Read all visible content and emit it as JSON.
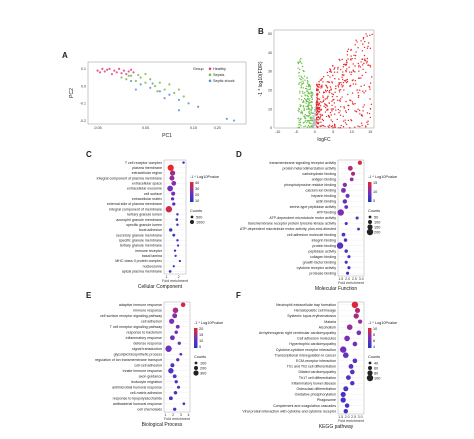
{
  "colors": {
    "healthy": "#e8407a",
    "sepsis": "#7ab648",
    "septic_shock": "#5b8fd6",
    "up": "#e8262b",
    "down": "#6cc04a",
    "ns": "#b5b5b5",
    "grad_high": "#e8262b",
    "grad_mid": "#7a2fb8",
    "grad_low": "#2235c9",
    "grid": "#e6e6e6"
  },
  "panels": {
    "A": "A",
    "B": "B",
    "C": "C",
    "D": "D",
    "E": "E",
    "F": "F"
  },
  "chart_data": [
    {
      "panel": "A",
      "type": "scatter",
      "xlabel": "PC1",
      "ylabel": "PC2",
      "xticks": [
        "-0.05",
        "0.05",
        "0.15",
        "0.20"
      ],
      "yticks": [
        "0.1",
        "0.0",
        "-0.1",
        "-0.2"
      ],
      "legend_title": "Group",
      "legend_position": "top-right",
      "series": [
        {
          "name": "Healthy",
          "points": [
            [
              -0.05,
              0.09
            ],
            [
              -0.045,
              0.08
            ],
            [
              -0.04,
              0.1
            ],
            [
              -0.035,
              0.085
            ],
            [
              -0.03,
              0.095
            ],
            [
              -0.02,
              0.07
            ],
            [
              -0.015,
              0.09
            ],
            [
              -0.01,
              0.08
            ],
            [
              0.0,
              0.075
            ],
            [
              0.005,
              0.09
            ],
            [
              0.01,
              0.07
            ],
            [
              0.015,
              0.085
            ],
            [
              0.02,
              0.095
            ],
            [
              -0.025,
              0.1
            ],
            [
              -0.005,
              0.1
            ],
            [
              0.025,
              0.08
            ]
          ]
        },
        {
          "name": "Sepsis",
          "points": [
            [
              0.0,
              0.05
            ],
            [
              0.01,
              0.04
            ],
            [
              0.02,
              0.06
            ],
            [
              0.03,
              0.03
            ],
            [
              0.04,
              0.05
            ],
            [
              0.05,
              0.02
            ],
            [
              0.06,
              0.04
            ],
            [
              0.07,
              0.0
            ],
            [
              0.08,
              0.02
            ],
            [
              0.09,
              -0.02
            ],
            [
              0.1,
              0.01
            ],
            [
              0.11,
              -0.04
            ],
            [
              0.12,
              -0.02
            ],
            [
              0.13,
              -0.06
            ],
            [
              0.05,
              0.07
            ],
            [
              0.035,
              0.065
            ],
            [
              0.075,
              -0.03
            ],
            [
              0.015,
              0.06
            ]
          ]
        },
        {
          "name": "Septic shock",
          "points": [
            [
              0.02,
              0.03
            ],
            [
              0.04,
              0.01
            ],
            [
              0.06,
              -0.01
            ],
            [
              0.08,
              -0.03
            ],
            [
              0.1,
              -0.05
            ],
            [
              0.12,
              -0.08
            ],
            [
              0.14,
              -0.1
            ],
            [
              0.16,
              -0.12
            ],
            [
              0.12,
              -0.14
            ],
            [
              0.22,
              -0.19
            ],
            [
              0.235,
              -0.2
            ],
            [
              0.09,
              -0.07
            ],
            [
              0.03,
              -0.02
            ],
            [
              0.065,
              0.015
            ]
          ]
        }
      ]
    },
    {
      "panel": "B",
      "type": "scatter",
      "xlabel": "logFC",
      "ylabel": "-1 * log10(FDR)",
      "xticks": [
        "-10",
        "-5",
        "0",
        "5",
        "10",
        "15"
      ],
      "yticks": [
        "0",
        "10",
        "20",
        "30",
        "40",
        "50"
      ],
      "xlim": [
        -11,
        16
      ],
      "ylim": [
        0,
        52
      ],
      "groups": [
        {
          "name": "down",
          "xrange": [
            -4.5,
            -0.5
          ],
          "ymax": 38,
          "count": 220
        },
        {
          "name": "ns",
          "xrange": [
            -0.6,
            0.6
          ],
          "ymax": 14,
          "count": 60
        },
        {
          "name": "up",
          "xrange": [
            0.5,
            15.5
          ],
          "ymax": 50,
          "count": 420
        }
      ]
    },
    {
      "panel": "C",
      "type": "dot",
      "xlabel": "Fold enrichment",
      "ylabel": "Cellular Component",
      "xticks": [
        "1",
        "2"
      ],
      "xlim": [
        0.8,
        2.6
      ],
      "color_title": "-1 * Log10Pvalue",
      "color_ticks": [
        "40",
        "30",
        "20",
        "10"
      ],
      "color_range": [
        0,
        45
      ],
      "size_title": "Counts",
      "size_ticks": [
        "500",
        "1000"
      ],
      "terms": [
        "T cell receptor complex",
        "plasma membrane",
        "extracellular region",
        "integral component of plasma membrane",
        "extracellular space",
        "extracellular exosome",
        "cell surface",
        "extracellular matrix",
        "external side of plasma membrane",
        "integral component of membrane",
        "tertiary granule lumen",
        "azurophil granule membrane",
        "specific granule lumen",
        "focal adhesion",
        "secretory granule membrane",
        "specific granule membrane",
        "tertiary granule membrane",
        "immune receptor",
        "basal lamina",
        "MHC class II protein complex",
        "nucleosome",
        "apical plasma membrane"
      ],
      "fold": [
        2.4,
        1.35,
        1.5,
        1.45,
        1.6,
        1.3,
        1.55,
        1.5,
        1.6,
        1.2,
        1.9,
        1.85,
        1.9,
        1.35,
        1.6,
        1.9,
        1.95,
        1.7,
        1.75,
        2.1,
        1.6,
        1.3
      ],
      "pvalue": [
        6,
        45,
        30,
        28,
        25,
        22,
        22,
        16,
        14,
        40,
        8,
        7,
        7,
        6,
        6,
        5,
        5,
        4,
        4,
        4,
        3,
        3
      ],
      "counts": [
        40,
        1100,
        700,
        600,
        500,
        900,
        300,
        150,
        150,
        1200,
        40,
        50,
        40,
        150,
        80,
        40,
        30,
        30,
        20,
        20,
        20,
        60
      ]
    },
    {
      "panel": "D",
      "type": "dot",
      "xlabel": "Fold enrichment",
      "ylabel": "Molecular Function",
      "xticks": [
        "1.5",
        "2.0",
        "2.5",
        "3.0"
      ],
      "xlim": [
        1.3,
        3.2
      ],
      "color_title": "-1 * Log10Pvalue",
      "color_ticks": [
        "15",
        "10",
        "5"
      ],
      "color_range": [
        0,
        16
      ],
      "size_title": "Counts",
      "size_ticks": [
        "50",
        "100",
        "150",
        "200"
      ],
      "terms": [
        "transmembrane signaling receptor activity",
        "protein heterodimerization activity",
        "carbohydrate binding",
        "antigen binding",
        "phosphotyrosine residue binding",
        "calcium ion binding",
        "heparin binding",
        "actin binding",
        "serine-type peptidase activity",
        "ATP binding",
        "ATP-dependent microtubule motor activity",
        "transmembrane receptor protein tyrosine kinase activity",
        "ATP-dependent microtubule motor activity, plus-end-directed",
        "cell adhesion molecule binding",
        "integrin binding",
        "protein binding",
        "peptidase activity",
        "collagen binding",
        "growth factor binding",
        "cytokine receptor activity",
        "protease binding"
      ],
      "fold": [
        2.9,
        2.2,
        2.4,
        2.3,
        1.8,
        1.7,
        2.0,
        1.8,
        1.9,
        1.5,
        2.7,
        1.9,
        2.8,
        1.7,
        1.85,
        1.45,
        1.9,
        2.1,
        1.9,
        2.1,
        2.0
      ],
      "pvalue": [
        15,
        12,
        11,
        10,
        9,
        8,
        7,
        6,
        6,
        8,
        5,
        4,
        4,
        4,
        4,
        5,
        3,
        3,
        3,
        3,
        2
      ],
      "counts": [
        60,
        90,
        50,
        40,
        60,
        90,
        50,
        70,
        40,
        200,
        20,
        20,
        15,
        40,
        30,
        200,
        30,
        20,
        20,
        20,
        20
      ]
    },
    {
      "panel": "E",
      "type": "dot",
      "xlabel": "Fold enrichment",
      "ylabel": "Biological Process",
      "xticks": [
        "1",
        "2",
        "3",
        "4"
      ],
      "xlim": [
        0.8,
        4.2
      ],
      "color_title": "-1 * Log10Pvalue",
      "color_ticks": [
        "20",
        "15",
        "10",
        "5"
      ],
      "color_range": [
        0,
        22
      ],
      "size_title": "Counts",
      "size_ticks": [
        "100",
        "200",
        "300"
      ],
      "terms": [
        "adaptive immune response",
        "immune response",
        "cell surface receptor signaling pathway",
        "cell adhesion",
        "T cell receptor signaling pathway",
        "response to bacterium",
        "inflammatory response",
        "defense response",
        "signal transduction",
        "glycolipid biosynthetic process",
        "regulation of ion transmembrane transport",
        "cell-cell adhesion",
        "innate immune response",
        "axon guidance",
        "leukocyte migration",
        "antimicrobial humoral response",
        "cell-matrix adhesion",
        "response to lipopolysaccharide",
        "antibacterial humoral response",
        "cell chemotaxis"
      ],
      "fold": [
        3.3,
        2.3,
        2.2,
        1.8,
        2.6,
        2.4,
        1.9,
        2.8,
        1.4,
        3.0,
        2.6,
        1.9,
        1.7,
        2.2,
        2.4,
        2.7,
        2.3,
        1.7,
        3.4,
        2.2
      ],
      "pvalue": [
        20,
        16,
        12,
        11,
        10,
        10,
        9,
        8,
        9,
        7,
        7,
        6,
        6,
        6,
        5,
        5,
        5,
        5,
        4,
        4
      ],
      "counts": [
        120,
        220,
        150,
        180,
        70,
        50,
        140,
        40,
        320,
        20,
        40,
        80,
        200,
        70,
        40,
        30,
        50,
        70,
        15,
        40
      ]
    },
    {
      "panel": "F",
      "type": "dot",
      "xlabel": "Fold enrichment",
      "ylabel": "KEGG pathway",
      "xticks": [
        "1.5",
        "2.0",
        "2.5",
        "3.0"
      ],
      "xlim": [
        1.3,
        3.3
      ],
      "color_title": "-1 * Log10Pvalue",
      "color_ticks": [
        "10",
        "8",
        "6",
        "4"
      ],
      "color_range": [
        2,
        11
      ],
      "size_title": "Counts",
      "size_ticks": [
        "40",
        "60",
        "80",
        "100"
      ],
      "terms": [
        "Neutrophil extracellular trap formation",
        "Hematopoietic cell lineage",
        "Systemic lupus erythematosus",
        "Malaria",
        "Alcoholism",
        "Arrhythmogenic right ventricular cardiomyopathy",
        "Cell adhesion molecules",
        "Hypertrophic cardiomyopathy",
        "Cytokine-cytokine receptor interaction",
        "Transcriptional misregulation in cancer",
        "ECM-receptor interaction",
        "Th1 and Th2 cell differentiation",
        "Dilated cardiomyopathy",
        "Th17 cell differentiation",
        "Inflammatory bowel disease",
        "Osteoclast differentiation",
        "Oxidative phosphorylation",
        "Phagosome",
        "Complement and coagulation cascades",
        "Viral protein interaction with cytokine and cytokine receptor"
      ],
      "fold": [
        2.6,
        2.8,
        2.7,
        3.0,
        2.2,
        2.9,
        2.0,
        2.6,
        1.7,
        1.9,
        2.6,
        2.3,
        2.4,
        2.1,
        2.4,
        1.9,
        1.7,
        1.7,
        2.0,
        1.9
      ],
      "pvalue": [
        10.5,
        9,
        8.5,
        7.5,
        7.5,
        6.5,
        6.5,
        6,
        6,
        5.5,
        5,
        5,
        5,
        4.5,
        4.5,
        4.5,
        4,
        4,
        3.5,
        3.5
      ],
      "counts": [
        100,
        55,
        60,
        30,
        70,
        40,
        70,
        40,
        100,
        70,
        40,
        45,
        40,
        45,
        35,
        50,
        55,
        60,
        35,
        35
      ]
    }
  ]
}
